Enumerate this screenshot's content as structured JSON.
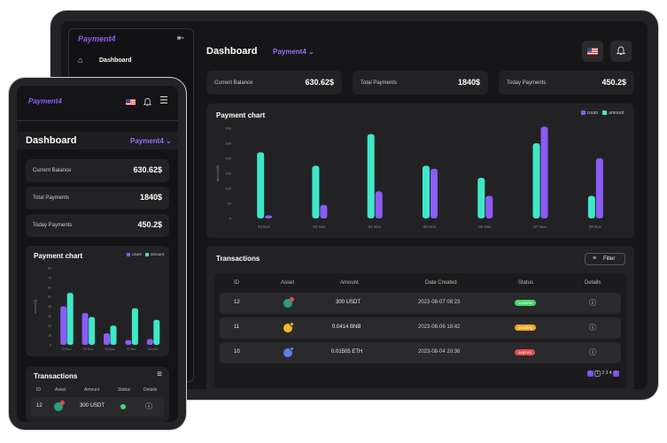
{
  "brand": "Payment4",
  "sidebar": {
    "items": [
      {
        "label": "Dashboard"
      }
    ]
  },
  "header": {
    "title": "Dashboard",
    "selector": "Payment4"
  },
  "stats": [
    {
      "label": "Current Balance",
      "value": "630.62$"
    },
    {
      "label": "Total Payments",
      "value": "1840$"
    },
    {
      "label": "Today Payments",
      "value": "450.2$"
    }
  ],
  "chart_title": "Payment chart",
  "legend": {
    "count": "count",
    "amount": "amount"
  },
  "colors": {
    "count": "#8b5cf6",
    "amount": "#3ee8c8",
    "success": "#47d66b",
    "pending": "#f2a623",
    "expired": "#e54a4a"
  },
  "chart_data": {
    "type": "bar",
    "title": "Payment chart",
    "ylabel": "amount($)",
    "categories": [
      "02 Nov",
      "03 Nov",
      "04 Nov",
      "05 Nov",
      "06 Nov",
      "07 Nov",
      "08 Nov"
    ],
    "ylim": [
      0,
      300
    ],
    "yticks": [
      0,
      50,
      100,
      150,
      200,
      250,
      300
    ],
    "series": [
      {
        "name": "amount",
        "values": [
          220,
          175,
          280,
          175,
          135,
          250,
          75
        ]
      },
      {
        "name": "count",
        "values": [
          10,
          45,
          90,
          165,
          75,
          305,
          200
        ]
      }
    ]
  },
  "mobile_chart": {
    "yticks": [
      0,
      10,
      20,
      30,
      40,
      50,
      60,
      70,
      80
    ],
    "ylabel": "amount($)",
    "categories": [
      "04 Nov",
      "05 Nov",
      "06 Nov",
      "07 Nov",
      "08 Nov"
    ],
    "count": [
      40,
      33,
      12,
      5,
      6
    ],
    "amount": [
      54,
      29,
      20,
      38,
      26
    ]
  },
  "transactions": {
    "title": "Transactions",
    "filter_label": "Filter",
    "columns": [
      "ID",
      "Asset",
      "Amount",
      "Date Created",
      "Status",
      "Details"
    ],
    "rows": [
      {
        "id": "12",
        "amount": "300 USDT",
        "date": "2023-08-07 08:23",
        "status": "success",
        "asset_color": "#26a17b"
      },
      {
        "id": "11",
        "amount": "0.0414 BNB",
        "date": "2023-08-06 18:42",
        "status": "pending",
        "asset_color": "#f3ba2f"
      },
      {
        "id": "10",
        "amount": "0.01505 ETH",
        "date": "2023-08-04 20:36",
        "status": "expired",
        "asset_color": "#627eea"
      }
    ],
    "pages": [
      "1",
      "2",
      "3",
      "4"
    ],
    "mobile_columns": [
      "ID",
      "Asset",
      "Amount",
      "Status",
      "Details"
    ]
  }
}
